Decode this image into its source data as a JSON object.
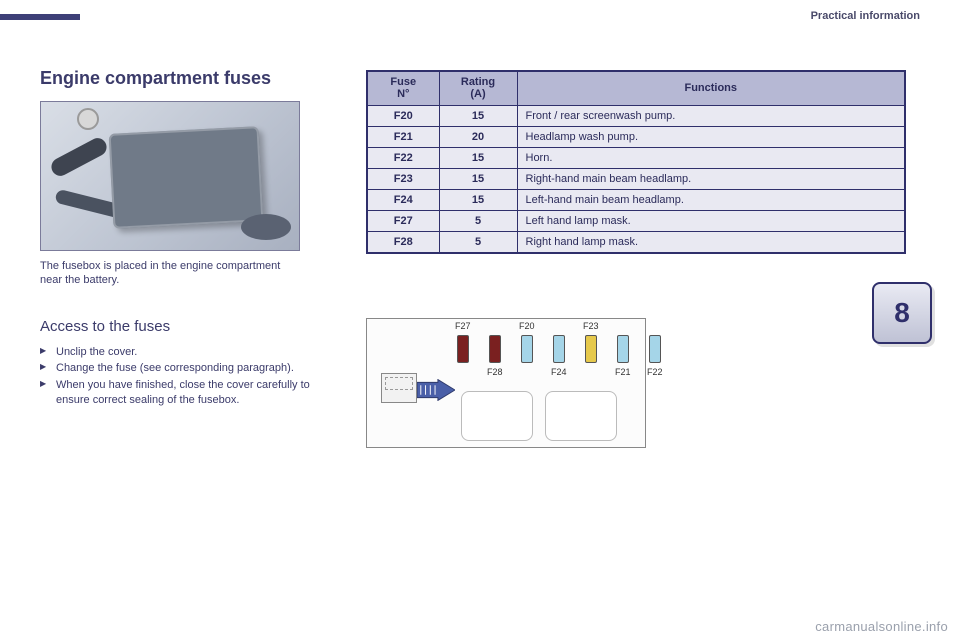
{
  "header": {
    "section_label": "Practical information",
    "chapter_number": "8"
  },
  "title": "Engine compartment fuses",
  "caption": "The fusebox is placed in the engine compartment near the battery.",
  "table": {
    "columns": [
      "Fuse\nN°",
      "Rating\n(A)",
      "Functions"
    ],
    "rows": [
      [
        "F20",
        "15",
        "Front / rear screenwash pump."
      ],
      [
        "F21",
        "20",
        "Headlamp wash pump."
      ],
      [
        "F22",
        "15",
        "Horn."
      ],
      [
        "F23",
        "15",
        "Right-hand main beam headlamp."
      ],
      [
        "F24",
        "15",
        "Left-hand main beam headlamp."
      ],
      [
        "F27",
        "5",
        "Left hand lamp mask."
      ],
      [
        "F28",
        "5",
        "Right hand lamp mask."
      ]
    ],
    "header_bg": "#b6b8d4",
    "cell_bg": "#e9e9f2",
    "border_color": "#2f2f6b"
  },
  "access": {
    "heading": "Access to the fuses",
    "steps": [
      "Unclip the cover.",
      "Change the fuse (see corresponding paragraph).",
      "When you have finished, close the cover carefully to ensure correct sealing of the fusebox."
    ]
  },
  "diagram": {
    "top_labels": [
      "F27",
      "F20",
      "F23"
    ],
    "bot_labels": [
      "F28",
      "F24",
      "F21",
      "F22"
    ],
    "slot_colors": [
      "#7a2020",
      "#7a2020",
      "#a5d5e8",
      "#a5d5e8",
      "#e6c94c",
      "#a5d5e8",
      "#a5d5e8"
    ]
  },
  "watermark": "carmanualsonline.info"
}
